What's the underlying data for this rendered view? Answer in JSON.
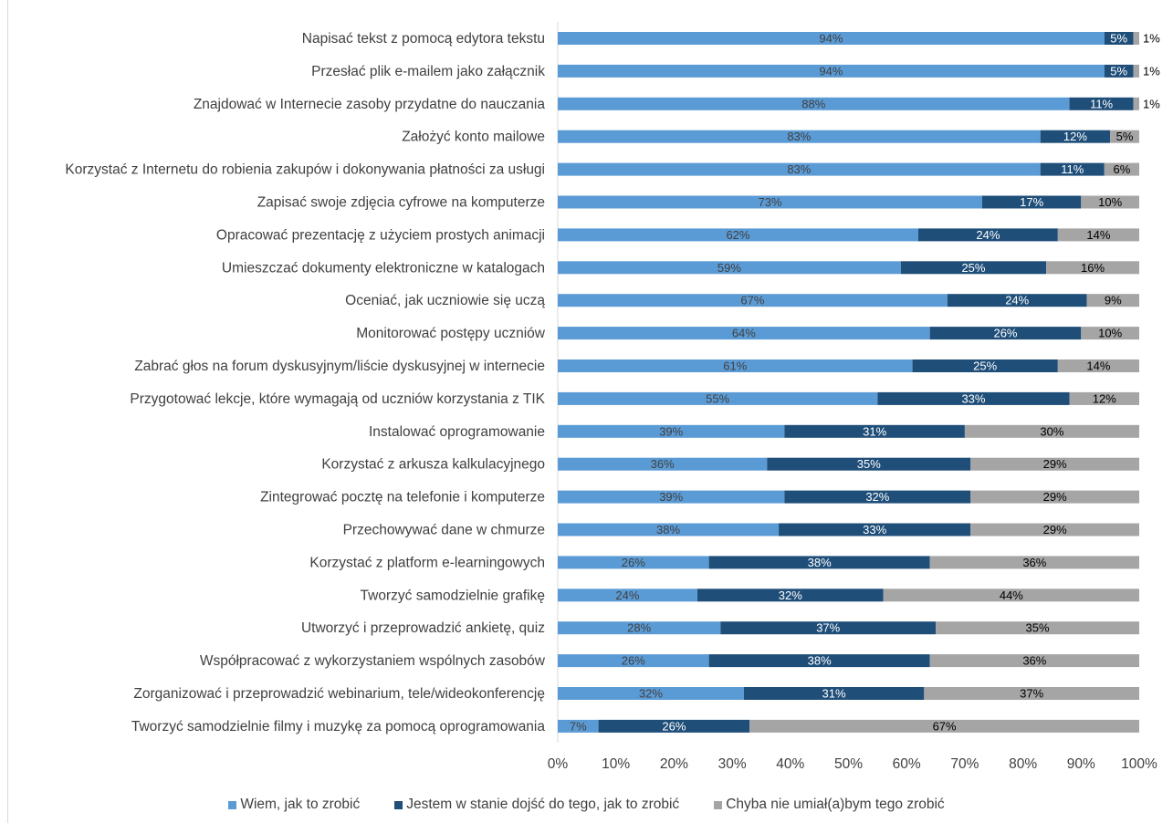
{
  "chart_data": {
    "type": "bar",
    "orientation": "horizontal",
    "stacked": true,
    "categories": [
      "Napisać tekst z pomocą edytora tekstu",
      "Przesłać plik e-mailem jako załącznik",
      "Znajdować w Internecie zasoby przydatne do nauczania",
      "Założyć konto mailowe",
      "Korzystać z Internetu do robienia zakupów i dokonywania płatności za usługi",
      "Zapisać swoje zdjęcia cyfrowe na komputerze",
      "Opracować prezentację z użyciem prostych animacji",
      "Umieszczać dokumenty elektroniczne w katalogach",
      "Oceniać, jak uczniowie się uczą",
      "Monitorować postępy uczniów",
      "Zabrać głos na forum dyskusyjnym/liście dyskusyjnej w internecie",
      "Przygotować lekcje, które wymagają od uczniów korzystania z TIK",
      "Instalować oprogramowanie",
      "Korzystać z arkusza kalkulacyjnego",
      "Zintegrować pocztę na telefonie i komputerze",
      "Przechowywać dane w chmurze",
      "Korzystać z platform e-learningowych",
      "Tworzyć samodzielnie grafikę",
      "Utworzyć i przeprowadzić ankietę, quiz",
      "Współpracować z wykorzystaniem wspólnych zasobów",
      "Zorganizować i przeprowadzić webinarium, tele/wideokonferencję",
      "Tworzyć samodzielnie filmy i muzykę za pomocą oprogramowania"
    ],
    "series": [
      {
        "name": "Wiem, jak to zrobić",
        "color": "#5b9bd5",
        "label_color": "#404040",
        "values": [
          94,
          94,
          88,
          83,
          83,
          73,
          62,
          59,
          67,
          64,
          61,
          55,
          39,
          36,
          39,
          38,
          26,
          24,
          28,
          26,
          32,
          7
        ],
        "labels": [
          "94%",
          "94%",
          "88%",
          "83%",
          "83%",
          "73%",
          "62%",
          "59%",
          "67%",
          "64%",
          "61%",
          "55%",
          "39%",
          "36%",
          "39%",
          "38%",
          "26%",
          "24%",
          "28%",
          "26%",
          "32%",
          "7%"
        ]
      },
      {
        "name": "Jestem w stanie dojść do tego, jak to zrobić",
        "color": "#1f4e79",
        "label_color": "#ffffff",
        "values": [
          5,
          5,
          11,
          12,
          11,
          17,
          24,
          25,
          24,
          26,
          25,
          33,
          31,
          35,
          32,
          33,
          38,
          32,
          37,
          38,
          31,
          26
        ],
        "labels": [
          "5%",
          "5%",
          "11%",
          "12%",
          "11%",
          "17%",
          "24%",
          "25%",
          "24%",
          "26%",
          "25%",
          "33%",
          "31%",
          "35%",
          "32%",
          "33%",
          "38%",
          "32%",
          "37%",
          "38%",
          "31%",
          "26%"
        ]
      },
      {
        "name": "Chyba nie umiał(a)bym tego zrobić",
        "color": "#a5a5a5",
        "label_color": "#000000",
        "values": [
          1,
          1,
          1,
          5,
          6,
          10,
          14,
          16,
          9,
          10,
          14,
          12,
          30,
          29,
          29,
          29,
          36,
          44,
          35,
          36,
          37,
          67
        ],
        "labels": [
          "1%",
          "1%",
          "1%",
          "5%",
          "6%",
          "10%",
          "14%",
          "16%",
          "9%",
          "10%",
          "14%",
          "12%",
          "30%",
          "29%",
          "29%",
          "29%",
          "36%",
          "44%",
          "35%",
          "36%",
          "37%",
          "67%"
        ]
      }
    ],
    "xlim": [
      0,
      100
    ],
    "x_ticks": [
      "0%",
      "10%",
      "20%",
      "30%",
      "40%",
      "50%",
      "60%",
      "70%",
      "80%",
      "90%",
      "100%"
    ],
    "legend_position": "bottom",
    "grid": false,
    "title": "",
    "xlabel": "",
    "ylabel": ""
  }
}
